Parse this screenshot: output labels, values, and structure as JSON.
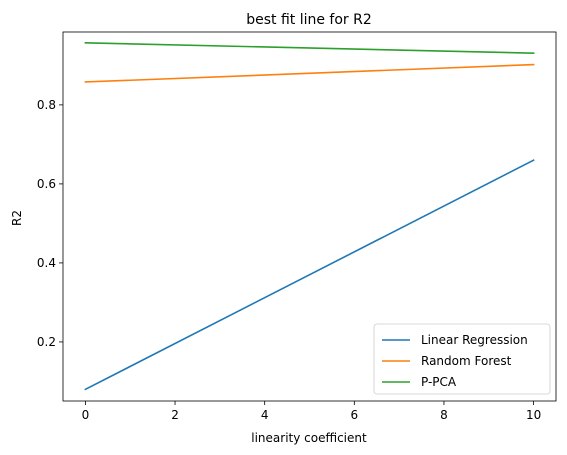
{
  "chart_data": {
    "type": "line",
    "title": "best fit line for R2",
    "xlabel": "linearity coefficient",
    "ylabel": "R2",
    "x": [
      0,
      10
    ],
    "xlim": [
      -0.5,
      10.5
    ],
    "ylim": [
      0.0505,
      0.9845
    ],
    "xticks": [
      0,
      2,
      4,
      6,
      8,
      10
    ],
    "xtick_labels": [
      "0",
      "2",
      "4",
      "6",
      "8",
      "10"
    ],
    "yticks": [
      0.2,
      0.4,
      0.6,
      0.8
    ],
    "ytick_labels": [
      "0.2",
      "0.4",
      "0.6",
      "0.8"
    ],
    "grid": false,
    "legend_position": "lower-right",
    "series": [
      {
        "name": "Linear Regression",
        "color": "#1f77b4",
        "values": [
          0.08,
          0.66
        ]
      },
      {
        "name": "Random Forest",
        "color": "#ff7f0e",
        "values": [
          0.858,
          0.902
        ]
      },
      {
        "name": "P-PCA",
        "color": "#2ca02c",
        "values": [
          0.957,
          0.931
        ]
      }
    ]
  }
}
